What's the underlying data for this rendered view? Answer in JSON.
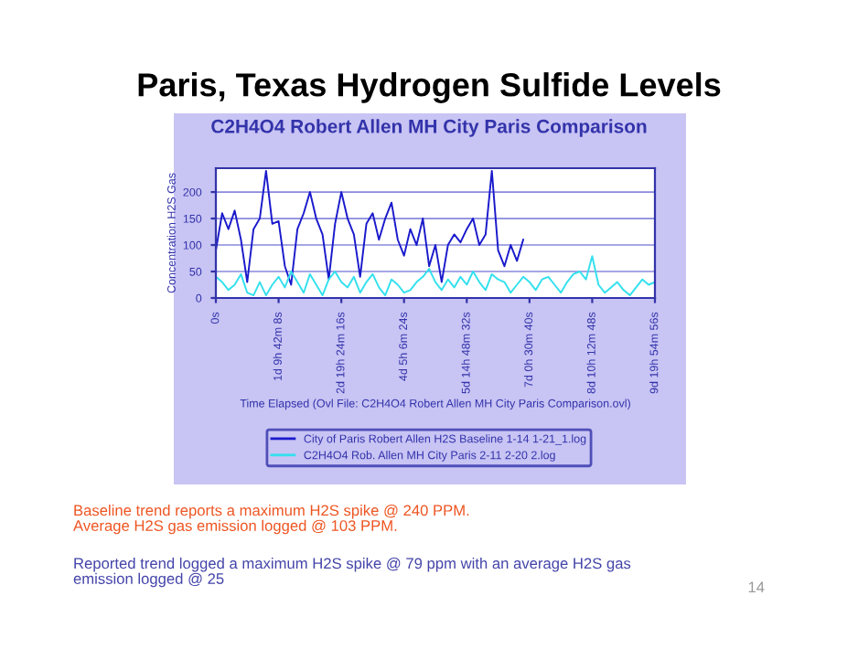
{
  "chart_data": {
    "type": "line",
    "title": "Paris, Texas Hydrogen Sulfide Levels",
    "subtitle": "C2H4O4 Robert Allen MH City Paris Comparison",
    "xlabel": "Time Elapsed (Ovl File: C2H4O4 Robert Allen MH City Paris Comparison.ovl)",
    "ylabel": "Concentration H2S Gas",
    "categories": [
      "0s",
      null,
      null,
      null,
      null,
      null,
      null,
      null,
      null,
      null,
      "1d 9h 42m 8s",
      null,
      null,
      null,
      null,
      null,
      null,
      null,
      null,
      null,
      "2d 19h 24m 16s",
      null,
      null,
      null,
      null,
      null,
      null,
      null,
      null,
      null,
      "4d 5h 6m 24s",
      null,
      null,
      null,
      null,
      null,
      null,
      null,
      null,
      null,
      "5d 14h 48m 32s",
      null,
      null,
      null,
      null,
      null,
      null,
      null,
      null,
      null,
      "7d 0h 30m 40s",
      null,
      null,
      null,
      null,
      null,
      null,
      null,
      null,
      null,
      "8d 10h 12m 48s",
      null,
      null,
      null,
      null,
      null,
      null,
      null,
      null,
      null,
      "9d 19h 54m 56s"
    ],
    "ylim": [
      0,
      245
    ],
    "yticks": [
      0,
      50,
      100,
      150,
      200
    ],
    "grid": "y",
    "legend": "bottom",
    "marker": "none",
    "line_style": "solid",
    "series": [
      {
        "name": "City of Paris Robert Allen H2S Baseline 1-14 1-21_1.log",
        "color": "#1a1acc",
        "values": [
          90,
          160,
          130,
          165,
          110,
          30,
          130,
          150,
          240,
          140,
          145,
          60,
          25,
          130,
          160,
          200,
          150,
          120,
          35,
          140,
          200,
          150,
          120,
          40,
          140,
          160,
          110,
          150,
          180,
          110,
          80,
          130,
          100,
          150,
          60,
          100,
          30,
          100,
          120,
          105,
          130,
          150,
          100,
          120,
          240,
          90,
          60,
          100,
          70,
          110,
          null,
          null,
          null,
          null,
          null,
          null,
          null,
          null,
          null,
          null,
          null,
          null,
          null,
          null,
          null,
          null,
          null,
          null,
          null,
          null,
          null
        ]
      },
      {
        "name": "C2H4O4 Rob. Allen MH City Paris 2-11 2-20 2.log",
        "color": "#33e0ee",
        "values": [
          40,
          30,
          15,
          25,
          45,
          10,
          5,
          30,
          5,
          25,
          40,
          20,
          50,
          30,
          10,
          45,
          25,
          5,
          35,
          50,
          30,
          20,
          40,
          10,
          30,
          45,
          20,
          5,
          35,
          25,
          10,
          15,
          30,
          40,
          55,
          30,
          15,
          35,
          20,
          40,
          25,
          50,
          30,
          15,
          45,
          35,
          30,
          10,
          25,
          40,
          30,
          15,
          35,
          40,
          25,
          10,
          30,
          45,
          50,
          35,
          79,
          25,
          10,
          20,
          30,
          15,
          5,
          20,
          35,
          25,
          30
        ]
      }
    ],
    "annotations": [
      "Baseline trend reports a maximum H2S spike @ 240 PPM.\nAverage H2S gas emission logged @ 103 PPM.",
      "Reported trend logged a maximum H2S spike @ 79 ppm with an average H2S gas\nemission logged @ 25",
      "14"
    ]
  }
}
